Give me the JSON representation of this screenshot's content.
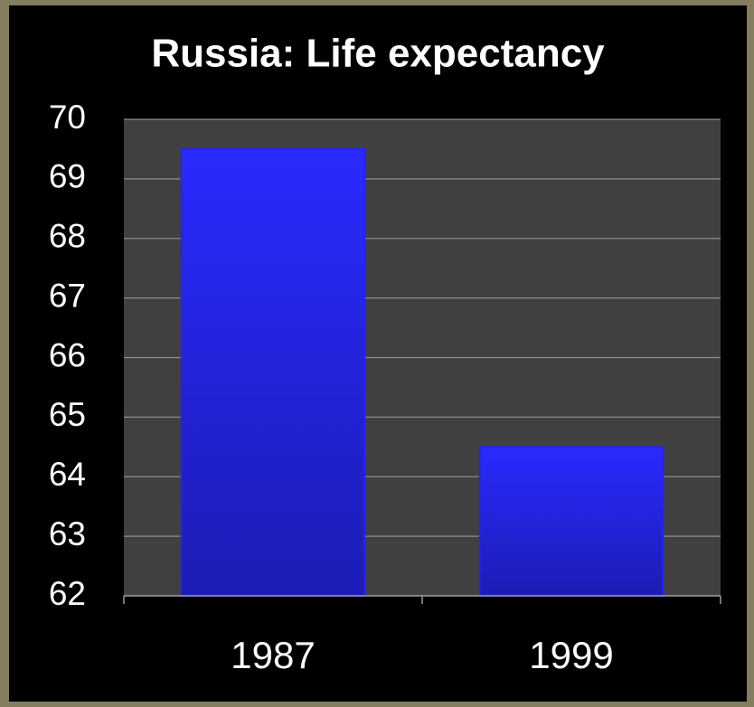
{
  "chart_data": {
    "type": "bar",
    "title": "Russia: Life expectancy",
    "categories": [
      "1987",
      "1999"
    ],
    "values": [
      69.5,
      64.5
    ],
    "color": "#2323f0",
    "ylim": [
      62,
      70
    ],
    "yticks": [
      62,
      63,
      64,
      65,
      66,
      67,
      68,
      69,
      70
    ],
    "grid": true
  }
}
